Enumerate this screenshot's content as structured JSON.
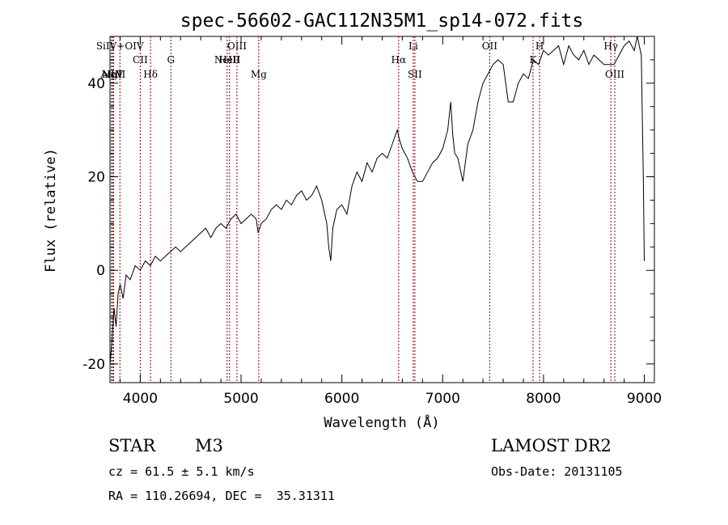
{
  "chart_data": {
    "type": "line",
    "title": "spec-56602-GAC112N35M1_sp14-072.fits",
    "xlabel": "Wavelength (Å)",
    "ylabel": "Flux (relative)",
    "xlim": [
      3700,
      9100
    ],
    "ylim": [
      -24,
      50
    ],
    "x_ticks": [
      4000,
      5000,
      6000,
      7000,
      8000,
      9000
    ],
    "y_ticks": [
      -20,
      0,
      20,
      40
    ],
    "grid": false,
    "legend": "none",
    "line_color": "#000000",
    "marker_color": "#8b0000",
    "series": [
      {
        "x": [
          3700,
          3720,
          3740,
          3760,
          3780,
          3800,
          3830,
          3860,
          3900,
          3950,
          4000,
          4050,
          4100,
          4150,
          4200,
          4250,
          4300,
          4350,
          4400,
          4450,
          4500,
          4550,
          4600,
          4650,
          4700,
          4750,
          4800,
          4850,
          4900,
          4950,
          5000,
          5050,
          5100,
          5150,
          5170,
          5200,
          5250,
          5300,
          5350,
          5400,
          5450,
          5500,
          5550,
          5600,
          5650,
          5700,
          5750,
          5800,
          5850,
          5870,
          5890,
          5910,
          5950,
          6000,
          6050,
          6100,
          6150,
          6200,
          6250,
          6300,
          6350,
          6400,
          6450,
          6500,
          6550,
          6570,
          6600,
          6650,
          6700,
          6750,
          6800,
          6850,
          6900,
          6950,
          7000,
          7050,
          7080,
          7100,
          7120,
          7150,
          7200,
          7250,
          7300,
          7350,
          7400,
          7450,
          7500,
          7550,
          7600,
          7650,
          7700,
          7750,
          7800,
          7850,
          7900,
          7950,
          8000,
          8050,
          8100,
          8150,
          8200,
          8250,
          8300,
          8350,
          8400,
          8450,
          8500,
          8550,
          8600,
          8650,
          8700,
          8750,
          8800,
          8850,
          8900,
          8930,
          8950,
          8970,
          8990,
          9000
        ],
        "y": [
          -20,
          -15,
          -8,
          -12,
          -5,
          -3,
          -6,
          -1,
          -2,
          1,
          0,
          2,
          1,
          3,
          2,
          3,
          4,
          5,
          4,
          5,
          6,
          7,
          8,
          9,
          7,
          9,
          10,
          9,
          11,
          12,
          10,
          11,
          12,
          11,
          8,
          10,
          11,
          13,
          14,
          13,
          15,
          14,
          16,
          17,
          15,
          16,
          18,
          15,
          10,
          5,
          2,
          9,
          13,
          14,
          12,
          18,
          21,
          19,
          23,
          21,
          24,
          25,
          24,
          27,
          30,
          28,
          26,
          24,
          21,
          19,
          19,
          21,
          23,
          24,
          26,
          30,
          36,
          29,
          25,
          24,
          19,
          27,
          30,
          36,
          40,
          42,
          44,
          45,
          44,
          36,
          36,
          40,
          42,
          41,
          45,
          44,
          47,
          46,
          47,
          48,
          44,
          48,
          46,
          45,
          47,
          44,
          46,
          45,
          44,
          44,
          44,
          46,
          48,
          49,
          47,
          50,
          48,
          46,
          20,
          2
        ]
      }
    ],
    "spectral_lines": [
      {
        "label": "AlIII",
        "x": 3715,
        "row": "low"
      },
      {
        "label": "NeV",
        "x": 3725,
        "row": "low"
      },
      {
        "label": "MgII",
        "x": 3736,
        "row": "low"
      },
      {
        "label": "SiIV+OIV",
        "x": 3798,
        "row": "top"
      },
      {
        "label": "CII",
        "x": 4000,
        "row": "mid"
      },
      {
        "label": "Hδ",
        "x": 4102,
        "row": "low"
      },
      {
        "label": "G",
        "x": 4304,
        "row": "mid"
      },
      {
        "label": "NeIII",
        "x": 4862,
        "row": "mid"
      },
      {
        "label": "HeII",
        "x": 4886,
        "row": "mid"
      },
      {
        "label": "OIII",
        "x": 4959,
        "row": "top"
      },
      {
        "label": "Mg",
        "x": 5175,
        "row": "low"
      },
      {
        "label": "Hα",
        "x": 6563,
        "row": "mid"
      },
      {
        "label": "Li",
        "x": 6708,
        "row": "top"
      },
      {
        "label": "SII",
        "x": 6724,
        "row": "low"
      },
      {
        "label": "OII",
        "x": 7466,
        "row": "top"
      },
      {
        "label": "K",
        "x": 7896,
        "row": "mid"
      },
      {
        "label": "H",
        "x": 7961,
        "row": "top"
      },
      {
        "label": "Hγ",
        "x": 8668,
        "row": "top"
      },
      {
        "label": "OIII",
        "x": 8707,
        "row": "low"
      }
    ]
  },
  "info": {
    "object_class": "STAR",
    "subclass": "M3",
    "survey": "LAMOST DR2",
    "redshift_text": "cz = 61.5 ± 5.1 km/s",
    "obs_date": "Obs-Date: 20131105",
    "coords": "RA = 110.26694, DEC =  35.31311"
  }
}
